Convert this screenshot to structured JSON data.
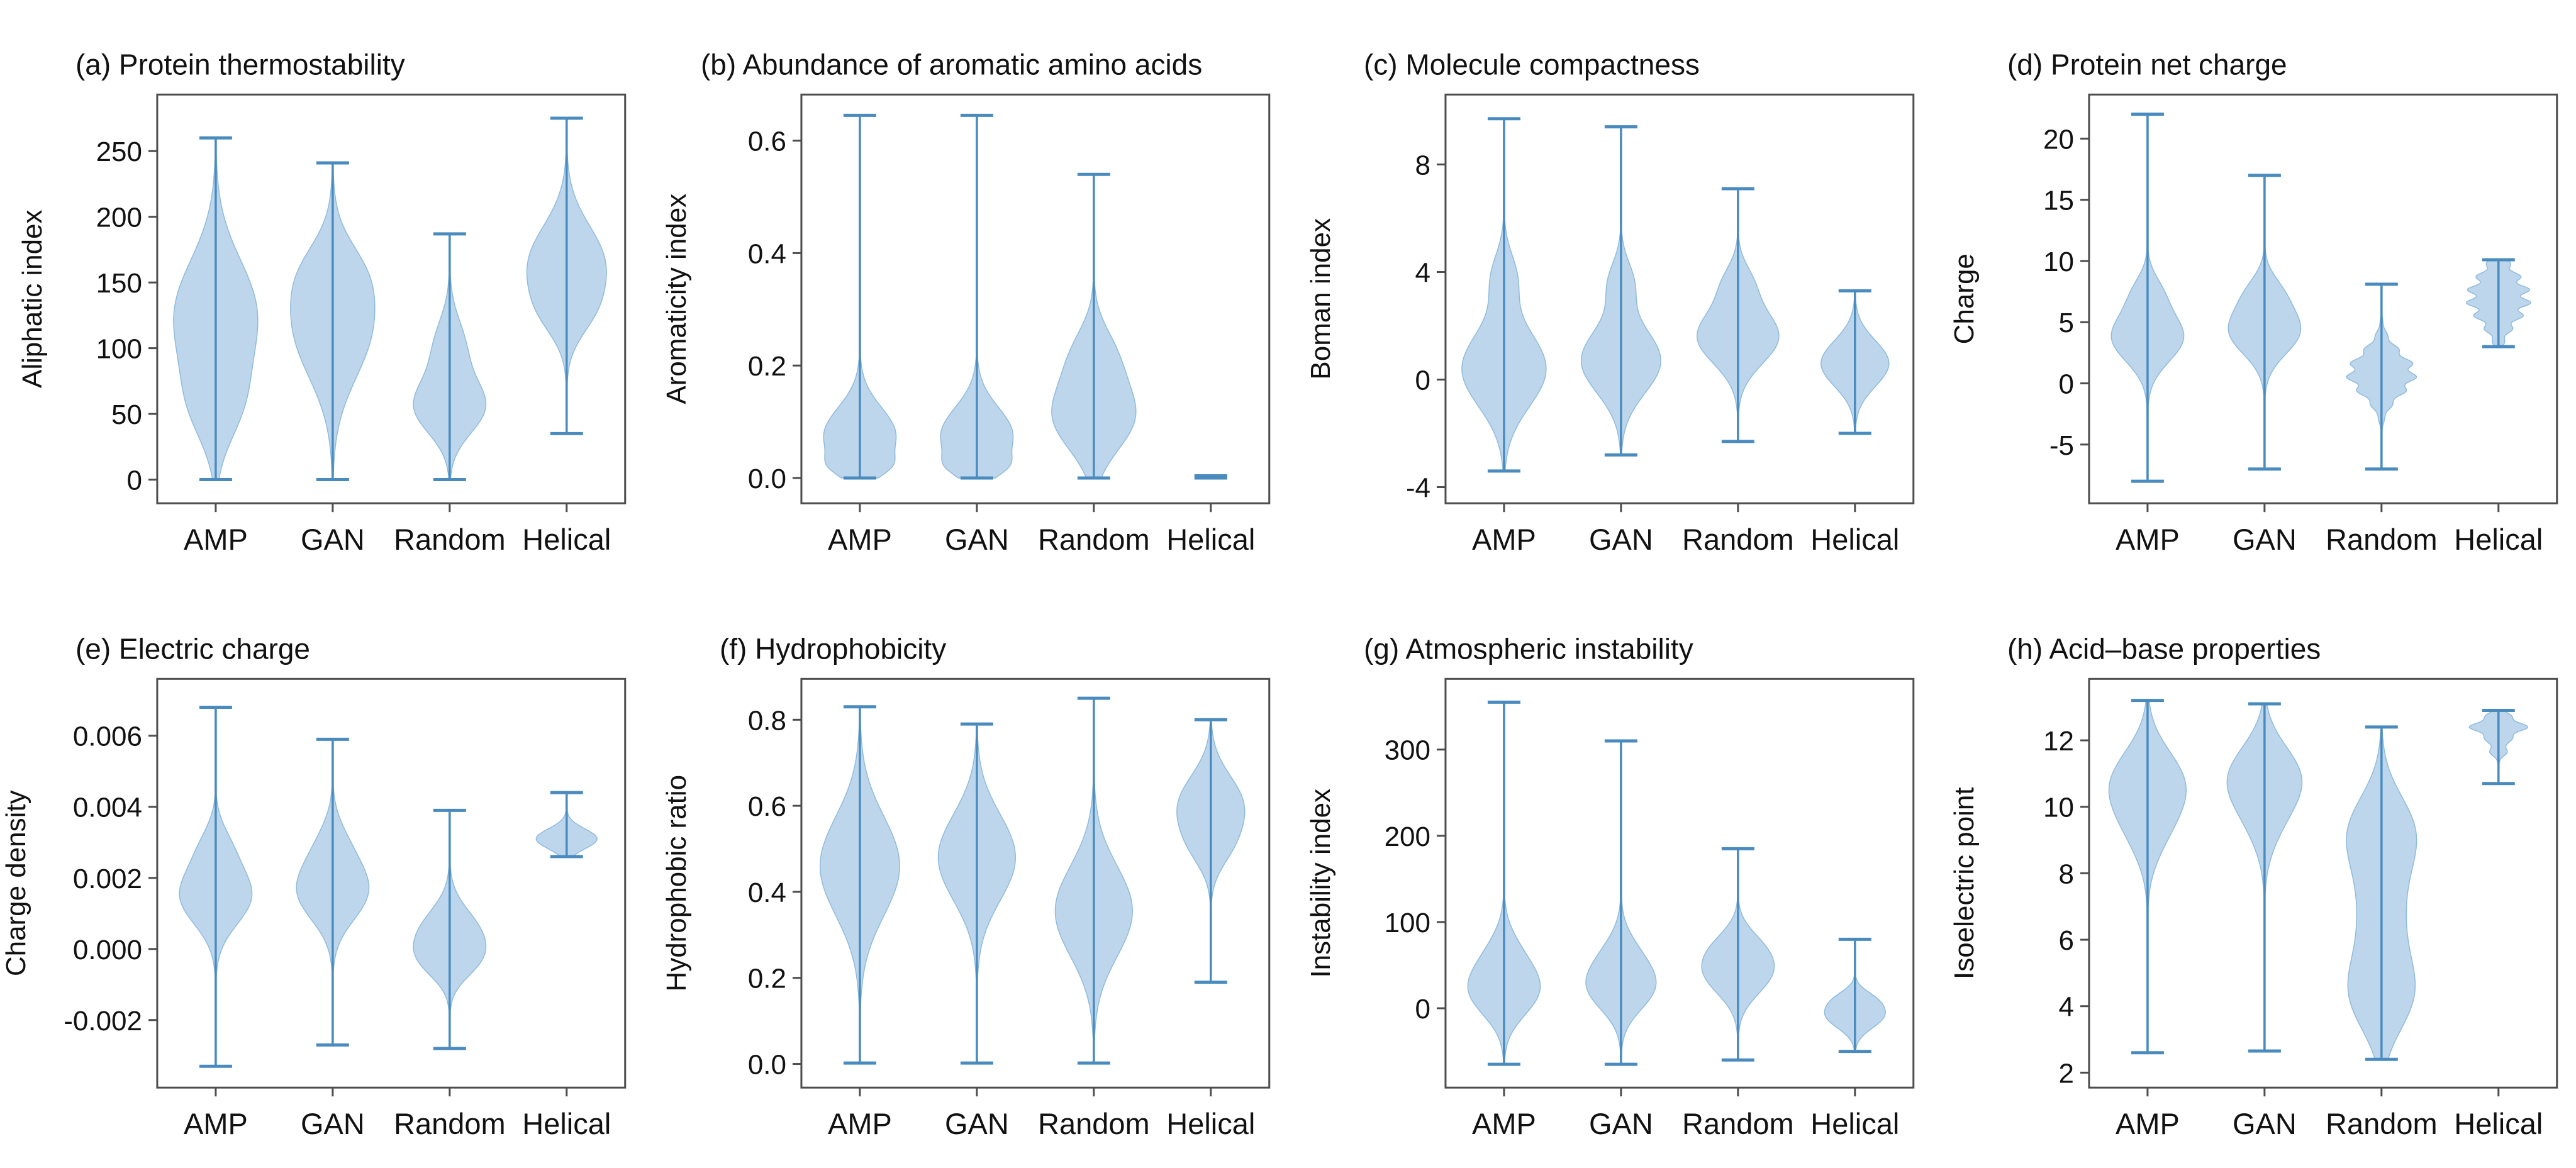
{
  "page": {
    "background": "#ffffff"
  },
  "style": {
    "violin_fill": "#bdd6eb",
    "violin_stroke": "#8fbbdd",
    "line_color": "#4a8bbf",
    "cap_color": "#4a8bbf",
    "axis_color": "#4d4d4d",
    "text_color": "#111111"
  },
  "chart_data": [
    {
      "type": "violin",
      "panel": "a",
      "title": "(a) Protein thermostability",
      "title_color": "#111111",
      "ylabel": "Aliphatic index",
      "categories": [
        "AMP",
        "GAN",
        "Random",
        "Helical"
      ],
      "yticks": {
        "values": [
          0,
          50,
          100,
          150,
          200,
          250
        ],
        "labels": [
          "0",
          "50",
          "100",
          "150",
          "200",
          "250"
        ]
      },
      "ylim": [
        -18,
        293
      ],
      "violins": [
        {
          "category": "AMP",
          "min": 0,
          "max": 260,
          "maxw": 0.72,
          "components": [
            [
              125,
              42,
              1
            ],
            [
              55,
              28,
              0.45
            ]
          ]
        },
        {
          "category": "GAN",
          "min": 0,
          "max": 241,
          "maxw": 0.72,
          "components": [
            [
              118,
              40,
              1
            ],
            [
              160,
              22,
              0.3
            ]
          ]
        },
        {
          "category": "Random",
          "min": 0,
          "max": 187,
          "maxw": 0.62,
          "components": [
            [
              55,
              20,
              1
            ],
            [
              100,
              22,
              0.45
            ]
          ]
        },
        {
          "category": "Helical",
          "min": 35,
          "max": 275,
          "maxw": 0.68,
          "components": [
            [
              163,
              30,
              1
            ],
            [
              125,
              18,
              0.3
            ]
          ]
        }
      ]
    },
    {
      "type": "violin",
      "panel": "b",
      "title": "(b) Abundance of aromatic amino acids",
      "title_color": "#3f454d",
      "ylabel": "Aromaticity index",
      "categories": [
        "AMP",
        "GAN",
        "Random",
        "Helical"
      ],
      "yticks": {
        "values": [
          0.0,
          0.2,
          0.4,
          0.6
        ],
        "labels": [
          "0.0",
          "0.2",
          "0.4",
          "0.6"
        ]
      },
      "ylim": [
        -0.045,
        0.682
      ],
      "violins": [
        {
          "category": "AMP",
          "min": 0,
          "max": 0.645,
          "maxw": 0.62,
          "components": [
            [
              0.075,
              0.05,
              1
            ],
            [
              0.02,
              0.018,
              0.35
            ]
          ]
        },
        {
          "category": "GAN",
          "min": 0,
          "max": 0.645,
          "maxw": 0.62,
          "components": [
            [
              0.075,
              0.05,
              1
            ],
            [
              0.02,
              0.018,
              0.35
            ]
          ]
        },
        {
          "category": "Random",
          "min": 0,
          "max": 0.54,
          "maxw": 0.72,
          "components": [
            [
              0.11,
              0.06,
              1
            ],
            [
              0.22,
              0.05,
              0.45
            ]
          ]
        },
        {
          "category": "Helical",
          "min": 0,
          "max": 0.004,
          "maxw": 0.12,
          "components": [
            [
              0,
              0.004,
              1
            ]
          ]
        }
      ]
    },
    {
      "type": "violin",
      "panel": "c",
      "title": "(c) Molecule compactness",
      "title_color": "#111111",
      "ylabel": "Boman index",
      "categories": [
        "AMP",
        "GAN",
        "Random",
        "Helical"
      ],
      "yticks": {
        "values": [
          -4,
          0,
          4,
          8
        ],
        "labels": [
          "-4",
          "0",
          "4",
          "8"
        ]
      },
      "ylim": [
        -4.6,
        10.6
      ],
      "violins": [
        {
          "category": "AMP",
          "min": -3.4,
          "max": 9.7,
          "maxw": 0.72,
          "components": [
            [
              0.4,
              1.4,
              1
            ],
            [
              3.8,
              0.9,
              0.28
            ]
          ]
        },
        {
          "category": "GAN",
          "min": -2.8,
          "max": 9.4,
          "maxw": 0.68,
          "components": [
            [
              0.7,
              1.2,
              1
            ],
            [
              3.6,
              0.8,
              0.3
            ]
          ]
        },
        {
          "category": "Random",
          "min": -2.3,
          "max": 7.1,
          "maxw": 0.7,
          "components": [
            [
              1.6,
              1.0,
              1
            ],
            [
              3.6,
              0.7,
              0.3
            ]
          ]
        },
        {
          "category": "Helical",
          "min": -2.0,
          "max": 3.3,
          "maxw": 0.58,
          "components": [
            [
              0.6,
              0.85,
              1
            ]
          ]
        }
      ]
    },
    {
      "type": "violin",
      "panel": "d",
      "title": "(d) Protein net charge",
      "title_color": "#111111",
      "ylabel": "Charge",
      "categories": [
        "AMP",
        "GAN",
        "Random",
        "Helical"
      ],
      "yticks": {
        "values": [
          -5,
          0,
          5,
          10,
          15,
          20
        ],
        "labels": [
          "-5",
          "0",
          "5",
          "10",
          "15",
          "20"
        ]
      },
      "ylim": [
        -9.8,
        23.6
      ],
      "violins": [
        {
          "category": "AMP",
          "min": -8,
          "max": 22,
          "maxw": 0.62,
          "components": [
            [
              3.8,
              2.0,
              1
            ],
            [
              7.5,
              1.4,
              0.3
            ]
          ]
        },
        {
          "category": "GAN",
          "min": -7,
          "max": 17,
          "maxw": 0.62,
          "components": [
            [
              4.3,
              1.9,
              1
            ],
            [
              7.5,
              1.4,
              0.35
            ]
          ]
        },
        {
          "category": "Random",
          "min": -7,
          "max": 8.1,
          "maxw": 0.6,
          "components": [
            [
              0.8,
              1.7,
              1
            ]
          ],
          "ripple": {
            "amp": 0.14,
            "period": 1.2
          }
        },
        {
          "category": "Helical",
          "min": 3,
          "max": 10.1,
          "maxw": 0.55,
          "components": [
            [
              7,
              2.0,
              1
            ]
          ],
          "ripple": {
            "amp": 0.2,
            "period": 1.1
          }
        }
      ]
    },
    {
      "type": "violin",
      "panel": "e",
      "title": "(e) Electric charge",
      "title_color": "#111111",
      "ylabel": "Charge density",
      "categories": [
        "AMP",
        "GAN",
        "Random",
        "Helical"
      ],
      "yticks": {
        "values": [
          -0.002,
          0.0,
          0.002,
          0.004,
          0.006
        ],
        "labels": [
          "-0.002",
          "0.000",
          "0.002",
          "0.004",
          "0.006"
        ]
      },
      "ylim": [
        -0.0039,
        0.0076
      ],
      "violins": [
        {
          "category": "AMP",
          "min": -0.0033,
          "max": 0.0068,
          "maxw": 0.62,
          "components": [
            [
              0.0015,
              0.0008,
              1
            ],
            [
              0.0029,
              0.0006,
              0.3
            ]
          ]
        },
        {
          "category": "GAN",
          "min": -0.0027,
          "max": 0.0059,
          "maxw": 0.62,
          "components": [
            [
              0.0016,
              0.0008,
              1
            ],
            [
              0.0029,
              0.0007,
              0.33
            ]
          ]
        },
        {
          "category": "Random",
          "min": -0.0028,
          "max": 0.0039,
          "maxw": 0.62,
          "components": [
            [
              0.0004,
              0.0007,
              1
            ],
            [
              -0.0004,
              0.0005,
              0.5
            ]
          ]
        },
        {
          "category": "Helical",
          "min": 0.0026,
          "max": 0.0044,
          "maxw": 0.52,
          "components": [
            [
              0.0031,
              0.00028,
              1
            ]
          ]
        }
      ]
    },
    {
      "type": "violin",
      "panel": "f",
      "title": "(f) Hydrophobicity",
      "title_color": "#111111",
      "ylabel": "Hydrophobic ratio",
      "categories": [
        "AMP",
        "GAN",
        "Random",
        "Helical"
      ],
      "yticks": {
        "values": [
          0.0,
          0.2,
          0.4,
          0.6,
          0.8
        ],
        "labels": [
          "0.0",
          "0.2",
          "0.4",
          "0.6",
          "0.8"
        ]
      },
      "ylim": [
        -0.055,
        0.895
      ],
      "violins": [
        {
          "category": "AMP",
          "min": 0.002,
          "max": 0.83,
          "maxw": 0.68,
          "components": [
            [
              0.46,
              0.115,
              1
            ]
          ]
        },
        {
          "category": "GAN",
          "min": 0.002,
          "max": 0.79,
          "maxw": 0.66,
          "components": [
            [
              0.48,
              0.1,
              1
            ]
          ]
        },
        {
          "category": "Random",
          "min": 0.002,
          "max": 0.85,
          "maxw": 0.66,
          "components": [
            [
              0.355,
              0.105,
              1
            ]
          ]
        },
        {
          "category": "Helical",
          "min": 0.19,
          "max": 0.8,
          "maxw": 0.58,
          "components": [
            [
              0.6,
              0.07,
              1
            ],
            [
              0.5,
              0.05,
              0.35
            ]
          ]
        }
      ]
    },
    {
      "type": "violin",
      "panel": "g",
      "title": "(g) Atmospheric instability",
      "title_color": "#111111",
      "ylabel": "Instability index",
      "categories": [
        "AMP",
        "GAN",
        "Random",
        "Helical"
      ],
      "yticks": {
        "values": [
          0,
          100,
          200,
          300
        ],
        "labels": [
          "0",
          "100",
          "200",
          "300"
        ]
      },
      "ylim": [
        -92,
        382
      ],
      "violins": [
        {
          "category": "AMP",
          "min": -65,
          "max": 355,
          "maxw": 0.62,
          "components": [
            [
              18,
              28,
              1
            ],
            [
              60,
              28,
              0.45
            ]
          ]
        },
        {
          "category": "GAN",
          "min": -65,
          "max": 310,
          "maxw": 0.6,
          "components": [
            [
              22,
              26,
              1
            ],
            [
              60,
              26,
              0.5
            ]
          ]
        },
        {
          "category": "Random",
          "min": -60,
          "max": 185,
          "maxw": 0.62,
          "components": [
            [
              42,
              26,
              1
            ],
            [
              75,
              20,
              0.35
            ]
          ]
        },
        {
          "category": "Helical",
          "min": -50,
          "max": 80,
          "maxw": 0.52,
          "components": [
            [
              -8,
              15,
              1
            ],
            [
              12,
              10,
              0.35
            ]
          ]
        }
      ]
    },
    {
      "type": "violin",
      "panel": "h",
      "title": "(h) Acid–base properties",
      "title_color": "#111111",
      "ylabel": "Isoelectric point",
      "categories": [
        "AMP",
        "GAN",
        "Random",
        "Helical"
      ],
      "yticks": {
        "values": [
          2,
          4,
          6,
          8,
          10,
          12
        ],
        "labels": [
          "2",
          "4",
          "6",
          "8",
          "10",
          "12"
        ]
      },
      "ylim": [
        1.55,
        13.85
      ],
      "violins": [
        {
          "category": "AMP",
          "min": 2.6,
          "max": 13.2,
          "maxw": 0.66,
          "components": [
            [
              10.7,
              1.0,
              1
            ],
            [
              9.2,
              0.9,
              0.35
            ]
          ]
        },
        {
          "category": "GAN",
          "min": 2.65,
          "max": 13.1,
          "maxw": 0.64,
          "components": [
            [
              10.9,
              0.95,
              1
            ],
            [
              9.5,
              0.9,
              0.3
            ]
          ]
        },
        {
          "category": "Random",
          "min": 2.4,
          "max": 12.4,
          "maxw": 0.6,
          "components": [
            [
              9.3,
              1.1,
              0.95
            ],
            [
              4.3,
              1.1,
              0.9
            ],
            [
              6.8,
              1.6,
              0.7
            ]
          ]
        },
        {
          "category": "Helical",
          "min": 10.7,
          "max": 12.9,
          "maxw": 0.5,
          "components": [
            [
              12.4,
              0.28,
              1
            ],
            [
              11.7,
              0.18,
              0.3
            ]
          ],
          "ripple": {
            "amp": 0.18,
            "period": 0.4
          }
        }
      ]
    }
  ]
}
